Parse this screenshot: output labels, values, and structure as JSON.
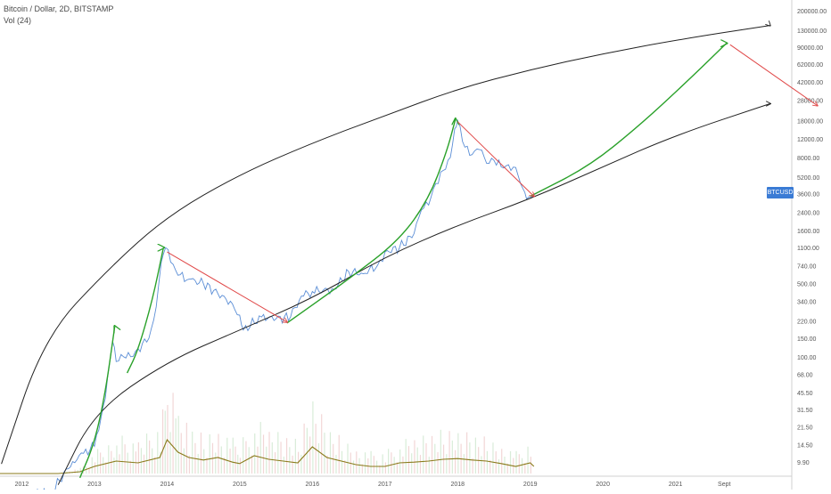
{
  "chart_data": {
    "type": "line",
    "title": "Bitcoin / Dollar, 2D, BITSTAMP",
    "indicator_label": "Vol (24)",
    "symbol_badge": "BTCUSD",
    "y_scale": "log",
    "ylim": [
      8,
      230000
    ],
    "xlim": [
      2011.7,
      2022.6
    ],
    "grid": false,
    "y_ticks": [
      "200000.00",
      "130000.00",
      "90000.00",
      "62000.00",
      "42000.00",
      "28000.00",
      "18000.00",
      "12000.00",
      "8000.00",
      "5200.00",
      "3600.00",
      "2400.00",
      "1600.00",
      "1100.00",
      "740.00",
      "500.00",
      "340.00",
      "220.00",
      "150.00",
      "100.00",
      "68.00",
      "45.50",
      "31.50",
      "21.50",
      "14.50",
      "9.90"
    ],
    "x_ticks": [
      {
        "label": "2012",
        "x": 2012.0
      },
      {
        "label": "2013",
        "x": 2013.0
      },
      {
        "label": "2014",
        "x": 2014.0
      },
      {
        "label": "2015",
        "x": 2015.0
      },
      {
        "label": "2016",
        "x": 2016.0
      },
      {
        "label": "2017",
        "x": 2017.0
      },
      {
        "label": "2018",
        "x": 2018.0
      },
      {
        "label": "2019",
        "x": 2019.0
      },
      {
        "label": "2020",
        "x": 2020.0
      },
      {
        "label": "2021",
        "x": 2021.0
      },
      {
        "label": "Sept",
        "x": 2021.67
      }
    ],
    "series": [
      {
        "color": "#5b8ed6",
        "x": [
          2012.0,
          2012.4,
          2012.7,
          2012.85,
          2013.0,
          2013.15,
          2013.25,
          2013.3,
          2013.4,
          2013.5,
          2013.6,
          2013.75,
          2013.85,
          2013.92,
          2013.98,
          2014.05,
          2014.15,
          2014.3,
          2014.5,
          2014.7,
          2014.9,
          2015.0,
          2015.05,
          2015.3,
          2015.5,
          2015.7,
          2015.85,
          2016.0,
          2016.3,
          2016.5,
          2016.7,
          2016.9,
          2017.0,
          2017.2,
          2017.4,
          2017.5,
          2017.6,
          2017.7,
          2017.8,
          2017.9,
          2017.96,
          2018.0,
          2018.1,
          2018.2,
          2018.3,
          2018.4,
          2018.5,
          2018.6,
          2018.7,
          2018.8,
          2018.9,
          2018.95,
          2019.05
        ],
        "y": [
          5,
          5,
          10,
          12,
          14,
          40,
          140,
          90,
          100,
          100,
          120,
          150,
          300,
          800,
          1100,
          800,
          600,
          550,
          500,
          400,
          320,
          250,
          180,
          240,
          230,
          240,
          380,
          420,
          440,
          650,
          620,
          750,
          1000,
          1100,
          1500,
          2500,
          2800,
          4500,
          6000,
          8000,
          15000,
          18000,
          10000,
          8500,
          9500,
          7000,
          7500,
          6500,
          6800,
          6400,
          4000,
          3200,
          3500
        ]
      }
    ],
    "volume": {
      "color": "#8a7a1a",
      "x": [
        2011.7,
        2012.0,
        2012.5,
        2012.8,
        2013.0,
        2013.3,
        2013.6,
        2013.9,
        2014.0,
        2014.15,
        2014.3,
        2014.5,
        2014.7,
        2014.9,
        2015.0,
        2015.2,
        2015.4,
        2015.6,
        2015.8,
        2016.0,
        2016.2,
        2016.4,
        2016.6,
        2016.8,
        2017.0,
        2017.2,
        2017.4,
        2017.6,
        2017.8,
        2018.0,
        2018.2,
        2018.4,
        2018.6,
        2018.8,
        2019.0,
        2019.05
      ],
      "y": [
        0,
        0,
        0,
        5,
        20,
        35,
        30,
        45,
        95,
        60,
        45,
        38,
        45,
        32,
        28,
        50,
        40,
        35,
        30,
        75,
        45,
        35,
        25,
        20,
        20,
        30,
        32,
        35,
        40,
        42,
        38,
        35,
        28,
        20,
        30,
        20
      ]
    },
    "annotations": [
      {
        "type": "channel-upper",
        "color": "#222222",
        "points": [
          [
            2011.72,
            9.5
          ],
          [
            2012.3,
            150
          ],
          [
            2013.2,
            700
          ],
          [
            2014.0,
            2200
          ],
          [
            2015.0,
            5500
          ],
          [
            2016.0,
            11000
          ],
          [
            2017.0,
            20000
          ],
          [
            2018.0,
            36000
          ],
          [
            2019.0,
            55000
          ],
          [
            2020.0,
            78000
          ],
          [
            2021.0,
            105000
          ],
          [
            2022.3,
            145000
          ]
        ]
      },
      {
        "type": "channel-lower",
        "color": "#222222",
        "points": [
          [
            2012.5,
            6
          ],
          [
            2013.0,
            30
          ],
          [
            2014.0,
            90
          ],
          [
            2015.0,
            180
          ],
          [
            2016.0,
            360
          ],
          [
            2017.0,
            900
          ],
          [
            2018.0,
            1800
          ],
          [
            2019.0,
            3200
          ],
          [
            2020.0,
            6500
          ],
          [
            2021.0,
            13000
          ],
          [
            2022.3,
            26000
          ]
        ]
      },
      {
        "type": "green-arrow",
        "color": "#2aa12a",
        "points": [
          [
            2012.8,
            7
          ],
          [
            2013.0,
            15
          ],
          [
            2013.15,
            45
          ],
          [
            2013.28,
            195
          ]
        ]
      },
      {
        "type": "green-arrow",
        "color": "#2aa12a",
        "points": [
          [
            2013.45,
            70
          ],
          [
            2013.6,
            115
          ],
          [
            2013.8,
            350
          ],
          [
            2013.95,
            1100
          ]
        ]
      },
      {
        "type": "green-arrow",
        "color": "#2aa12a",
        "points": [
          [
            2015.65,
            210
          ],
          [
            2016.5,
            550
          ],
          [
            2017.2,
            1300
          ],
          [
            2017.6,
            3200
          ],
          [
            2017.85,
            9000
          ],
          [
            2017.97,
            18500
          ]
        ]
      },
      {
        "type": "green-arrow",
        "color": "#2aa12a",
        "points": [
          [
            2019.0,
            3400
          ],
          [
            2019.8,
            6500
          ],
          [
            2020.5,
            16000
          ],
          [
            2021.2,
            45000
          ],
          [
            2021.7,
            98000
          ]
        ]
      },
      {
        "type": "red-arrow",
        "color": "#e04848",
        "points": [
          [
            2014.0,
            1000
          ],
          [
            2015.65,
            215
          ]
        ]
      },
      {
        "type": "red-arrow",
        "color": "#e04848",
        "points": [
          [
            2018.0,
            17500
          ],
          [
            2019.05,
            3400
          ]
        ]
      },
      {
        "type": "red-arrow",
        "color": "#e04848",
        "points": [
          [
            2021.75,
            95000
          ],
          [
            2022.95,
            25000
          ]
        ]
      }
    ],
    "price_badge_label": "BTCUSD",
    "legend_lines": [
      "Bitcoin / Dollar, 2D, BITSTAMP",
      "Vol (24)"
    ]
  }
}
